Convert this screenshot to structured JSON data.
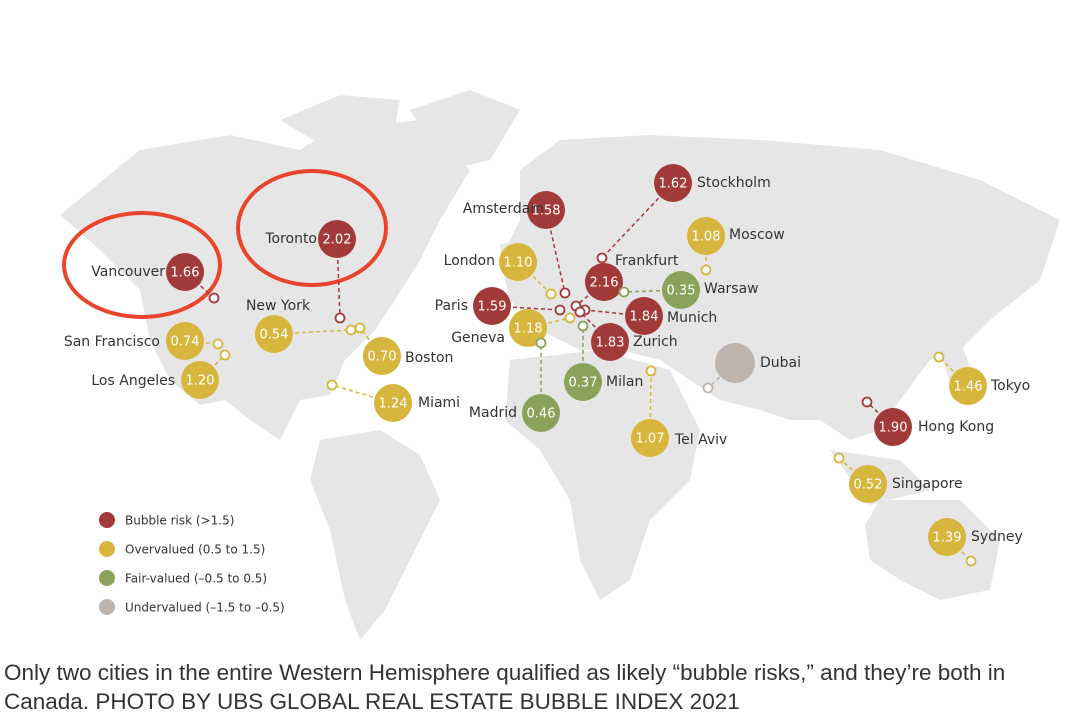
{
  "legend": [
    {
      "label": "Bubble risk (>1.5)",
      "color": "#a23a3a"
    },
    {
      "label": "Overvalued (0.5 to 1.5)",
      "color": "#d6b63c"
    },
    {
      "label": "Fair-valued (–0.5 to 0.5)",
      "color": "#8aa25a"
    },
    {
      "label": "Undervalued (–1.5 to –0.5)",
      "color": "#bdb5ab"
    }
  ],
  "cities": [
    {
      "name": "Vancouver",
      "value": "1.66",
      "class": 0
    },
    {
      "name": "Toronto",
      "value": "2.02",
      "class": 0
    },
    {
      "name": "New York",
      "value": "0.54",
      "class": 1
    },
    {
      "name": "Boston",
      "value": "0.70",
      "class": 1
    },
    {
      "name": "San Francisco",
      "value": "0.74",
      "class": 1
    },
    {
      "name": "Los Angeles",
      "value": "1.20",
      "class": 1
    },
    {
      "name": "Miami",
      "value": "1.24",
      "class": 1
    },
    {
      "name": "London",
      "value": "1.10",
      "class": 1
    },
    {
      "name": "Amsterdam",
      "value": "1.58",
      "class": 0
    },
    {
      "name": "Stockholm",
      "value": "1.62",
      "class": 0
    },
    {
      "name": "Frankfurt",
      "value": "2.16",
      "class": 0
    },
    {
      "name": "Moscow",
      "value": "1.08",
      "class": 1
    },
    {
      "name": "Warsaw",
      "value": "0.35",
      "class": 2
    },
    {
      "name": "Paris",
      "value": "1.59",
      "class": 0
    },
    {
      "name": "Munich",
      "value": "1.84",
      "class": 0
    },
    {
      "name": "Geneva",
      "value": "1.18",
      "class": 1
    },
    {
      "name": "Zurich",
      "value": "1.83",
      "class": 0
    },
    {
      "name": "Milan",
      "value": "0.37",
      "class": 2
    },
    {
      "name": "Madrid",
      "value": "0.46",
      "class": 2
    },
    {
      "name": "Tel Aviv",
      "value": "1.07",
      "class": 1
    },
    {
      "name": "Dubai",
      "class": 3
    },
    {
      "name": "Tokyo",
      "value": "1.46",
      "class": 1
    },
    {
      "name": "Hong Kong",
      "value": "1.90",
      "class": 0
    },
    {
      "name": "Singapore",
      "value": "0.52",
      "class": 1
    },
    {
      "name": "Sydney",
      "value": "1.39",
      "class": 1
    }
  ],
  "caption": "Only two cities in the entire Western Hemisphere qualified as likely “bubble risks,” and they’re both in Canada. PHOTO BY UBS GLOBAL REAL ESTATE BUBBLE INDEX 2021"
}
